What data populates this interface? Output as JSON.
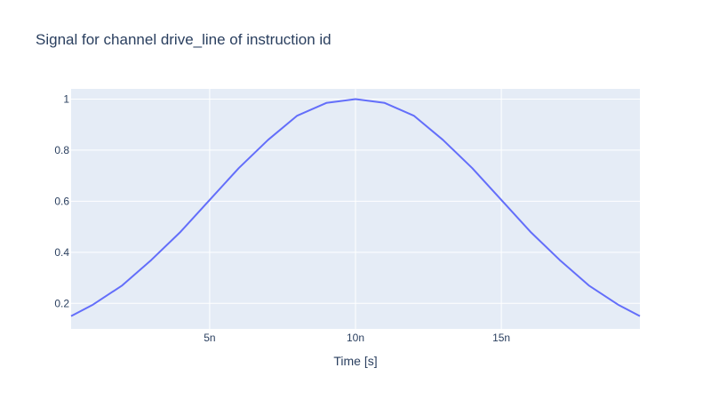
{
  "chart_data": {
    "type": "line",
    "title": "Signal for channel drive_line of instruction id",
    "xlabel": "Time [s]",
    "ylabel": "",
    "x_unit_label_suffix": "n",
    "xlim": [
      2.5e-10,
      1.975e-08
    ],
    "ylim": [
      0.1,
      1.04
    ],
    "xticks": [
      {
        "value": 5e-09,
        "label": "5n"
      },
      {
        "value": 1e-08,
        "label": "10n"
      },
      {
        "value": 1.5e-08,
        "label": "15n"
      }
    ],
    "yticks": [
      {
        "value": 0.2,
        "label": "0.2"
      },
      {
        "value": 0.4,
        "label": "0.4"
      },
      {
        "value": 0.6,
        "label": "0.6"
      },
      {
        "value": 0.8,
        "label": "0.8"
      },
      {
        "value": 1,
        "label": "1"
      }
    ],
    "grid": true,
    "colors": {
      "line": "#636efa",
      "plot_bg": "#e5ecf6",
      "grid": "#ffffff",
      "text": "#2a3f5f"
    },
    "series": [
      {
        "x": [
          2.5e-10,
          1e-09,
          2e-09,
          3e-09,
          4e-09,
          5e-09,
          6e-09,
          7e-09,
          8e-09,
          9e-09,
          1e-08,
          1.1e-08,
          1.2e-08,
          1.3e-08,
          1.4e-08,
          1.5e-08,
          1.6e-08,
          1.7e-08,
          1.8e-08,
          1.9e-08,
          1.975e-08
        ],
        "y": [
          0.15,
          0.195,
          0.27,
          0.37,
          0.48,
          0.605,
          0.73,
          0.84,
          0.935,
          0.985,
          1.0,
          0.985,
          0.935,
          0.84,
          0.73,
          0.605,
          0.48,
          0.37,
          0.27,
          0.195,
          0.15
        ]
      }
    ]
  }
}
